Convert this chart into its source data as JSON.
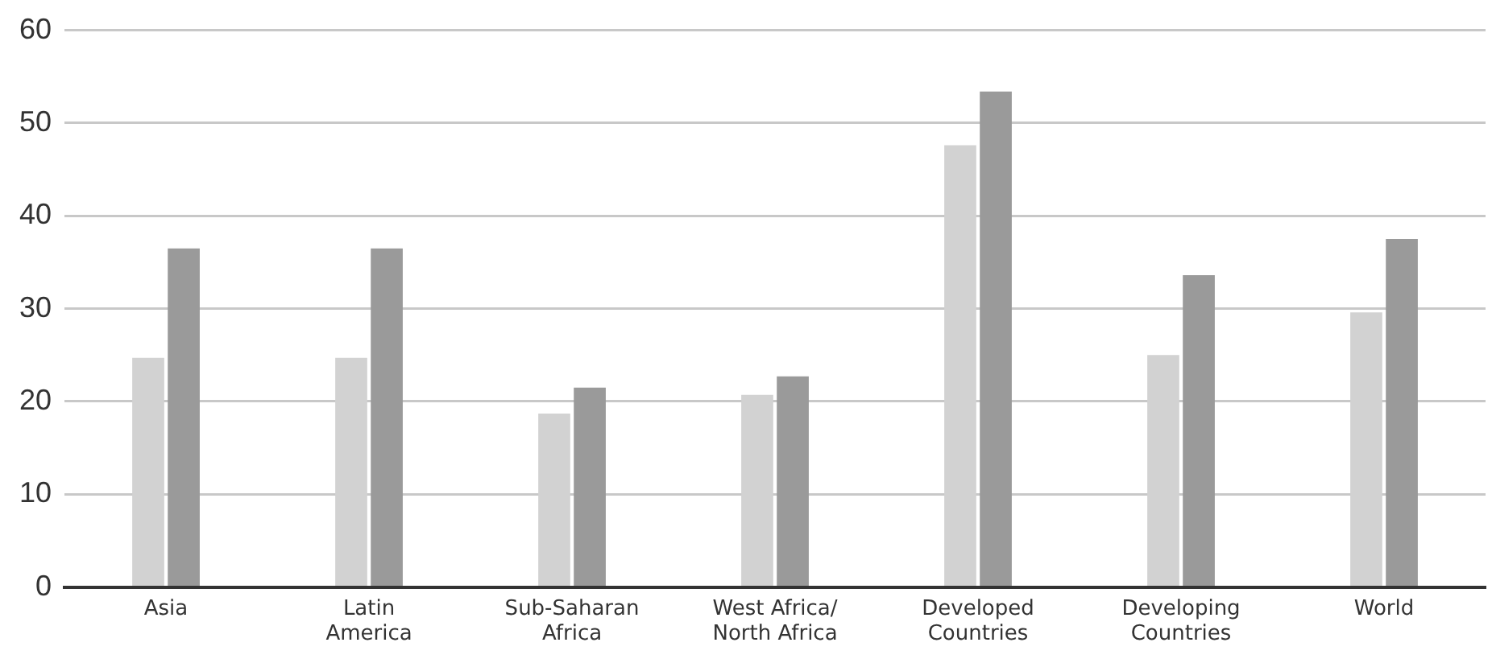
{
  "chart_data": {
    "type": "bar",
    "categories": [
      "Asia",
      "Latin\nAmerica",
      "Sub-Saharan\nAfrica",
      "West Africa/\nNorth Africa",
      "Developed\nCountries",
      "Developing\nCountries",
      "World"
    ],
    "series": [
      {
        "color": "#d2d2d2",
        "values": [
          24.7,
          24.7,
          18.7,
          20.7,
          47.6,
          25,
          29.6
        ]
      },
      {
        "color": "#9a9a9a",
        "values": [
          36.5,
          36.5,
          21.5,
          22.7,
          53.4,
          33.6,
          37.5
        ]
      }
    ],
    "ylim": [
      0,
      60
    ],
    "yticks": [
      0,
      10,
      20,
      30,
      40,
      50,
      60
    ],
    "grid": "y"
  }
}
